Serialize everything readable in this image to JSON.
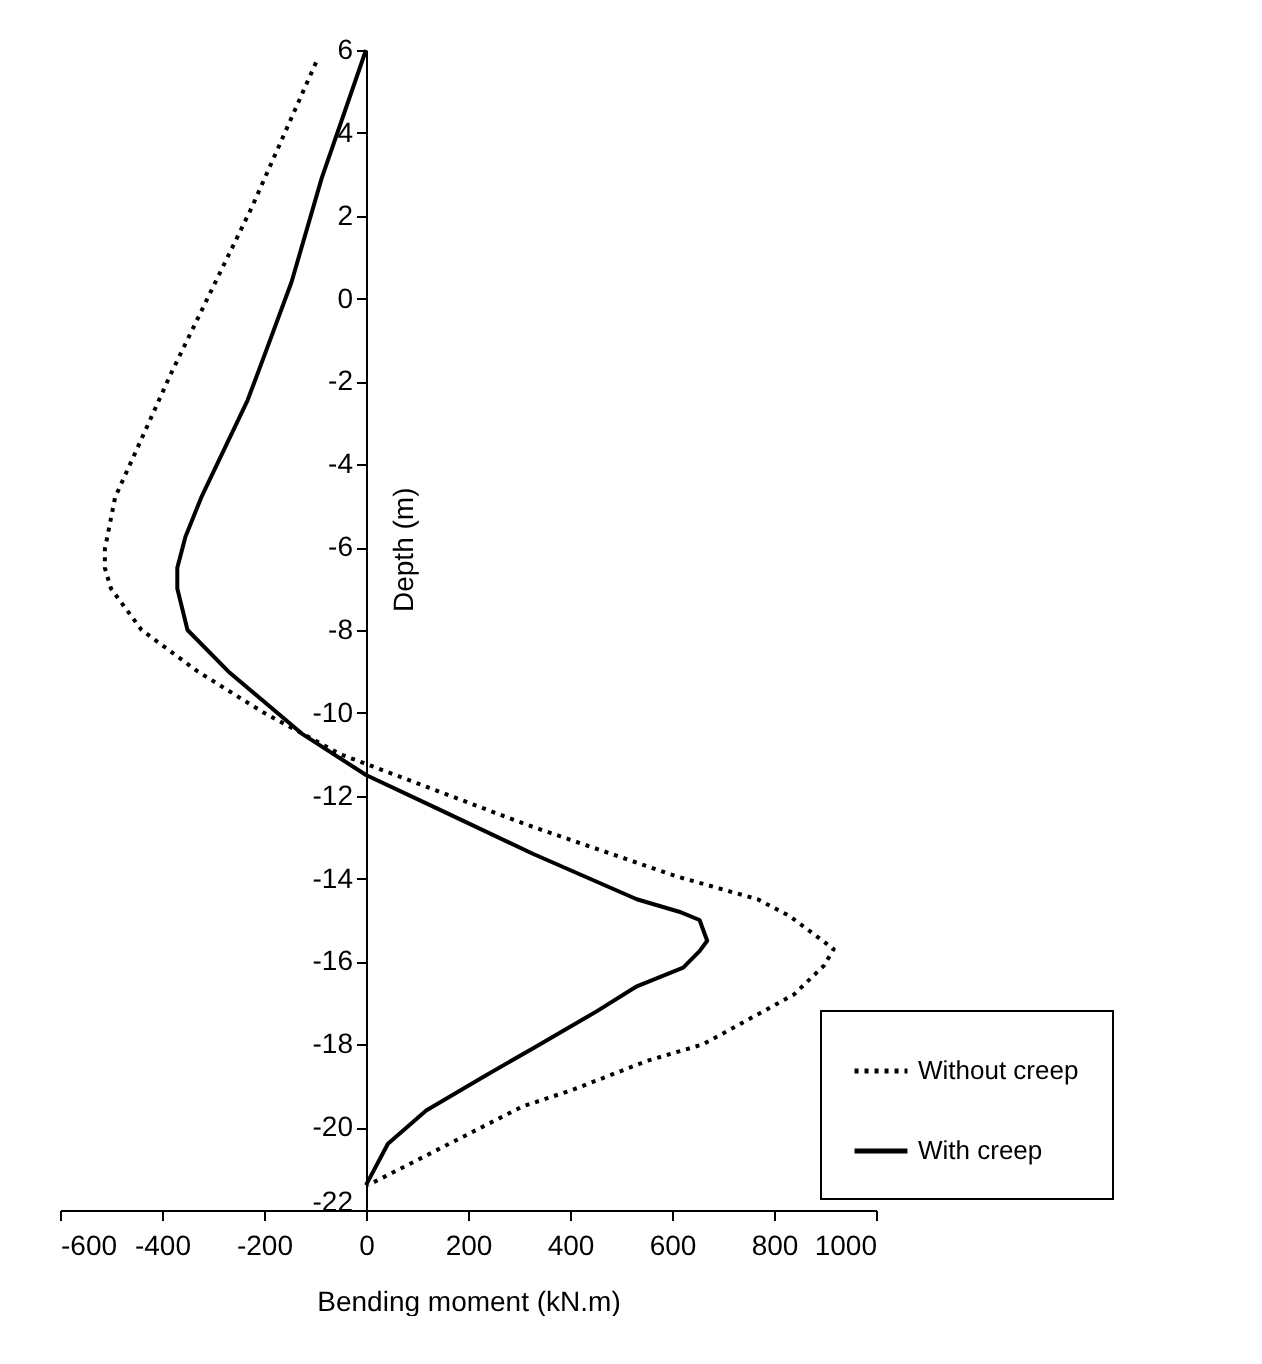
{
  "chart_data": {
    "type": "line",
    "xlabel": "Bending moment (kN.m)",
    "ylabel": "Depth (m)",
    "xlim": [
      -600,
      1000
    ],
    "xticks": [
      -600,
      -400,
      -200,
      0,
      200,
      400,
      600,
      800,
      1000
    ],
    "ylim": [
      -22,
      6
    ],
    "yticks": [
      -22,
      -20,
      -18,
      -16,
      -14,
      -12,
      -10,
      -8,
      -6,
      -4,
      -2,
      0,
      2,
      4,
      6
    ],
    "grid": false,
    "legend": "bottom right",
    "series": [
      {
        "name": "Without creep",
        "color": "#000000",
        "line_style": "dotted",
        "x": [
          -98,
          -224,
          -382,
          -492,
          -512,
          -512,
          -500,
          -440,
          -330,
          -200,
          -50,
          4,
          315,
          610,
          768,
          830,
          917,
          898,
          839,
          661,
          551,
          405,
          307,
          4
        ],
        "values": [
          5.7,
          2.2,
          -1.8,
          -4.8,
          -6.05,
          -6.5,
          -7,
          -8,
          -9,
          -10,
          -11,
          -11.25,
          -12.7,
          -13.95,
          -14.5,
          -14.9,
          -15.7,
          -16.1,
          -16.8,
          -18,
          -18.4,
          -19.1,
          -19.5,
          -21.4
        ]
      },
      {
        "name": "With creep",
        "color": "#000000",
        "line_style": "solid",
        "x": [
          0,
          -87,
          -146,
          -197,
          -232,
          -323,
          -354,
          -370,
          -370,
          -350,
          -270,
          -126,
          0,
          138,
          327,
          531,
          614,
          654,
          669,
          654,
          622,
          531,
          453,
          327,
          228,
          118,
          43,
          0
        ],
        "values": [
          6,
          2.9,
          0.4,
          -1.3,
          -2.45,
          -4.8,
          -5.75,
          -6.5,
          -7,
          -8,
          -9,
          -10.5,
          -11.5,
          -12.3,
          -13.4,
          -14.5,
          -14.8,
          -15,
          -15.5,
          -15.75,
          -16.15,
          -16.6,
          -17.2,
          -18.1,
          -18.8,
          -19.6,
          -20.4,
          -21.4
        ]
      }
    ]
  }
}
